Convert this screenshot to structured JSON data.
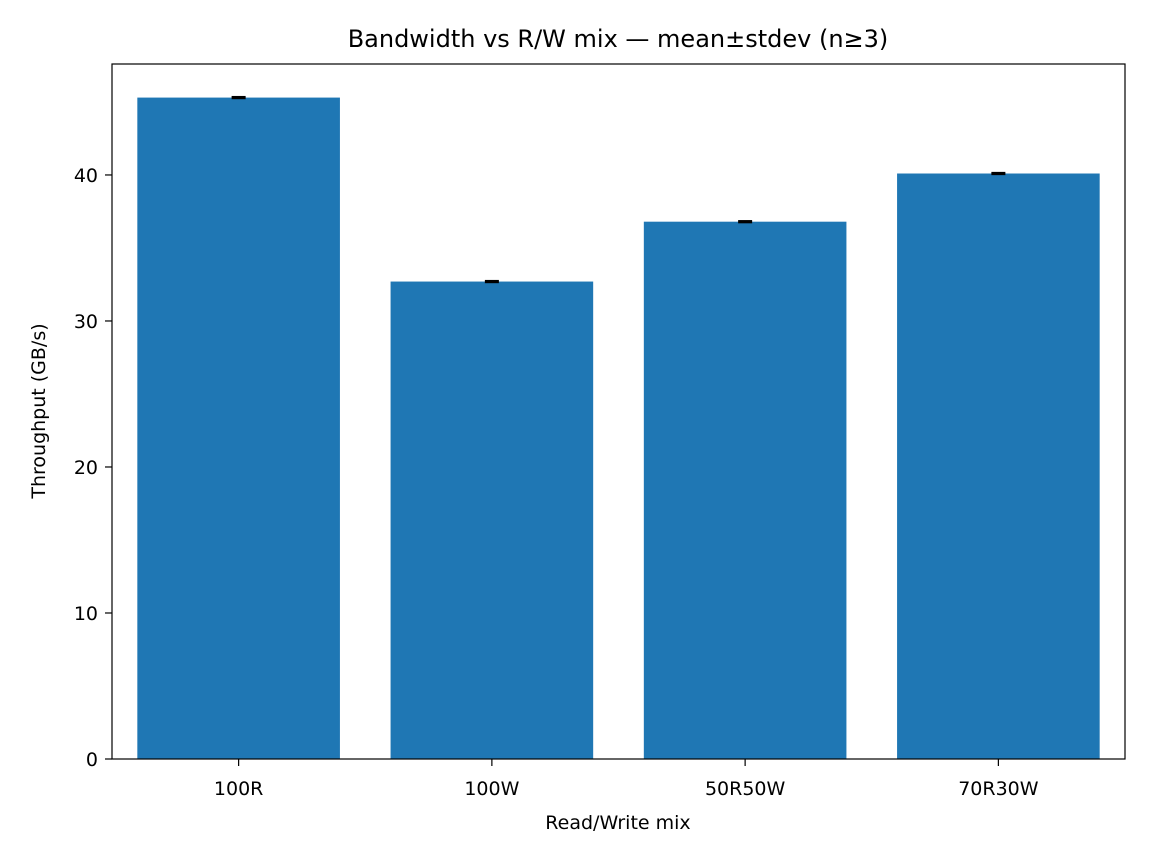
{
  "chart_data": {
    "type": "bar",
    "title": "Bandwidth vs R/W mix — mean±stdev (n≥3)",
    "xlabel": "Read/Write mix",
    "ylabel": "Throughput (GB/s)",
    "categories": [
      "100R",
      "100W",
      "50R50W",
      "70R30W"
    ],
    "values": [
      45.3,
      32.7,
      36.8,
      40.1
    ],
    "errors": [
      0.05,
      0.05,
      0.05,
      0.05
    ],
    "ylim": [
      0,
      47.6
    ],
    "yticks": [
      0,
      10,
      20,
      30,
      40
    ],
    "grid": false,
    "bar_color": "#1f77b4",
    "error_color": "#000000"
  }
}
